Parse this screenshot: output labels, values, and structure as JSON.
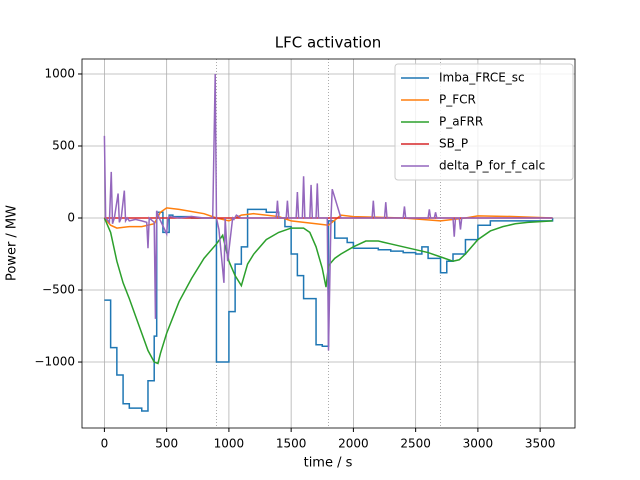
{
  "chart_data": {
    "type": "line",
    "title": "LFC activation",
    "xlabel": "time / s",
    "ylabel": "Power / MW",
    "xlim": [
      -180,
      3780
    ],
    "ylim": [
      -1458,
      1104
    ],
    "xticks": [
      0,
      500,
      1000,
      1500,
      2000,
      2500,
      3000,
      3500
    ],
    "yticks": [
      {
        "value": -1000,
        "label": "−1000"
      },
      {
        "value": -500,
        "label": "−500"
      },
      0,
      500,
      1000
    ],
    "grid": true,
    "legend": "upper right",
    "vlines": [
      900,
      1800,
      2700
    ],
    "series": [
      {
        "name": "Imba_FRCE_sc",
        "color": "#1f77b4",
        "drawstyle": "steps-post",
        "x": [
          0,
          50,
          100,
          150,
          200,
          300,
          350,
          400,
          420,
          470,
          520,
          550,
          700,
          900,
          1000,
          1050,
          1100,
          1150,
          1200,
          1300,
          1400,
          1450,
          1500,
          1550,
          1600,
          1700,
          1750,
          1800,
          1850,
          1950,
          2000,
          2200,
          2300,
          2400,
          2500,
          2550,
          2600,
          2700,
          2750,
          2800,
          2900,
          3000,
          3100,
          3600
        ],
        "values": [
          -570,
          -900,
          -1090,
          -1290,
          -1320,
          -1340,
          -1130,
          -820,
          40,
          -100,
          20,
          10,
          0,
          -1000,
          -650,
          -320,
          -200,
          60,
          60,
          40,
          0,
          -60,
          -250,
          -400,
          -560,
          -880,
          -890,
          -20,
          -140,
          -170,
          -210,
          -220,
          -230,
          -240,
          -250,
          -200,
          -280,
          -380,
          -300,
          -250,
          -150,
          -50,
          -20,
          0
        ]
      },
      {
        "name": "P_FCR",
        "color": "#ff7f0e",
        "x": [
          0,
          50,
          100,
          200,
          300,
          400,
          450,
          500,
          600,
          800,
          900,
          1000,
          1100,
          1200,
          1400,
          1500,
          1700,
          1800,
          1900,
          2000,
          2400,
          2700,
          2900,
          3000,
          3300,
          3600
        ],
        "values": [
          0,
          -50,
          -70,
          -60,
          -60,
          -40,
          40,
          70,
          60,
          30,
          0,
          -20,
          20,
          30,
          10,
          -20,
          -40,
          -50,
          20,
          10,
          0,
          -20,
          0,
          15,
          10,
          0
        ]
      },
      {
        "name": "P_aFRR",
        "color": "#2ca02c",
        "x": [
          0,
          50,
          100,
          150,
          200,
          250,
          300,
          350,
          400,
          430,
          450,
          500,
          600,
          700,
          800,
          900,
          950,
          1000,
          1050,
          1100,
          1150,
          1200,
          1300,
          1400,
          1500,
          1600,
          1650,
          1700,
          1750,
          1780,
          1800,
          1850,
          1900,
          2000,
          2100,
          2200,
          2300,
          2400,
          2500,
          2600,
          2700,
          2800,
          2850,
          2900,
          3000,
          3100,
          3200,
          3300,
          3400,
          3600
        ],
        "values": [
          0,
          -100,
          -300,
          -450,
          -560,
          -680,
          -800,
          -920,
          -1000,
          -1010,
          -940,
          -800,
          -580,
          -420,
          -280,
          -180,
          -120,
          -300,
          -400,
          -470,
          -320,
          -250,
          -150,
          -100,
          -70,
          -70,
          -100,
          -200,
          -350,
          -480,
          -330,
          -280,
          -250,
          -200,
          -160,
          -160,
          -180,
          -200,
          -220,
          -240,
          -270,
          -300,
          -290,
          -250,
          -150,
          -90,
          -60,
          -40,
          -30,
          -20
        ]
      },
      {
        "name": "SB_P",
        "color": "#d62728",
        "x": [
          0,
          3600
        ],
        "values": [
          0,
          0
        ]
      },
      {
        "name": "delta_P_for_f_calc",
        "color": "#9467bd",
        "x": [
          0,
          10,
          40,
          55,
          65,
          80,
          110,
          120,
          135,
          160,
          170,
          185,
          200,
          250,
          300,
          340,
          350,
          360,
          400,
          410,
          420,
          440,
          500,
          510,
          520,
          600,
          700,
          800,
          870,
          890,
          900,
          920,
          960,
          970,
          990,
          1030,
          1040,
          1060,
          1100,
          1150,
          1200,
          1300,
          1380,
          1390,
          1400,
          1460,
          1470,
          1480,
          1540,
          1550,
          1560,
          1590,
          1600,
          1610,
          1650,
          1660,
          1670,
          1700,
          1710,
          1720,
          1780,
          1790,
          1800,
          1820,
          1830,
          1900,
          2000,
          2150,
          2160,
          2170,
          2250,
          2260,
          2270,
          2400,
          2410,
          2420,
          2500,
          2600,
          2610,
          2620,
          2650,
          2660,
          2670,
          2800,
          2810,
          2820,
          2850,
          2860,
          2870,
          3000,
          3600
        ],
        "values": [
          570,
          0,
          -30,
          320,
          -40,
          0,
          170,
          -30,
          0,
          190,
          -20,
          0,
          -20,
          -10,
          -20,
          -30,
          -210,
          0,
          -30,
          -700,
          50,
          0,
          -110,
          0,
          10,
          0,
          10,
          0,
          0,
          1000,
          0,
          -80,
          -450,
          0,
          -300,
          0,
          -10,
          20,
          0,
          0,
          0,
          0,
          0,
          120,
          0,
          0,
          120,
          0,
          0,
          180,
          0,
          0,
          290,
          0,
          0,
          230,
          0,
          0,
          240,
          0,
          0,
          0,
          -920,
          0,
          200,
          0,
          0,
          0,
          120,
          0,
          0,
          110,
          0,
          0,
          80,
          0,
          0,
          0,
          60,
          0,
          0,
          40,
          0,
          0,
          -130,
          0,
          0,
          -80,
          0,
          0,
          0
        ]
      }
    ]
  }
}
